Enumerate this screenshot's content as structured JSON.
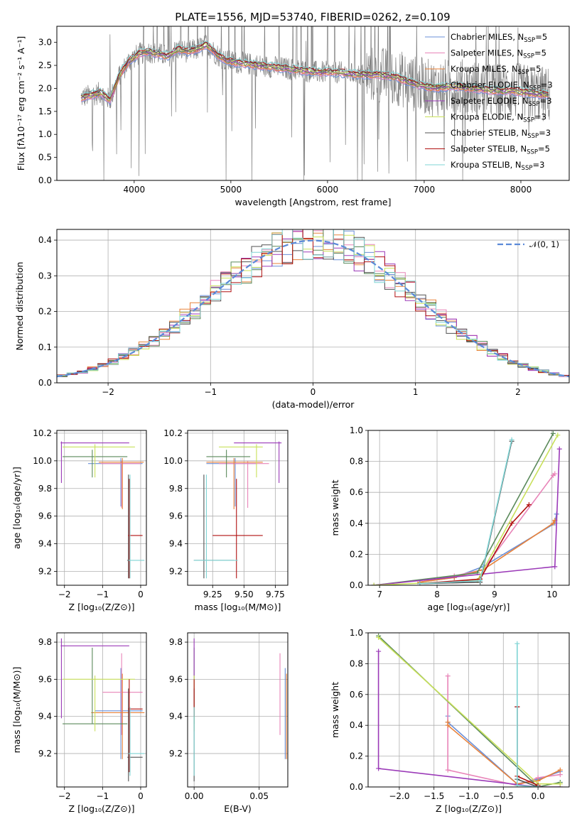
{
  "title": "PLATE=1556, MJD=53740, FIBERID=0262, z=0.109",
  "colors": {
    "Chabrier MILES": "#6a8fd8",
    "Salpeter MILES": "#e884b8",
    "Kroupa MILES": "#e8823a",
    "Chabrier ELODIE": "#5b8a5b",
    "Salpeter ELODIE": "#9b3ab8",
    "Kroupa ELODIE": "#c8e05a",
    "Chabrier STELIB": "#505050",
    "Salpeter STELIB": "#b01010",
    "Kroupa STELIB": "#7fd4d4",
    "data": "#808080",
    "gaussian": "#5b8ad8"
  },
  "chart_data": [
    {
      "type": "line",
      "xlabel": "wavelength [Angstrom, rest frame]",
      "ylabel": "Flux [fλ10⁻¹⁷ erg cm⁻² s⁻¹ A⁻¹]",
      "xlim": [
        3200,
        8500
      ],
      "ylim": [
        0,
        3.35
      ],
      "xticks": [
        "4000",
        "5000",
        "6000",
        "7000",
        "8000"
      ],
      "yticks": [
        "0.0",
        "0.5",
        "1.0",
        "1.5",
        "2.0",
        "2.5",
        "3.0"
      ],
      "legend_position": "top-right",
      "legend": [
        {
          "name": "Chabrier MILES",
          "suffix": "=5"
        },
        {
          "name": "Salpeter MILES",
          "suffix": "=5"
        },
        {
          "name": "Kroupa MILES",
          "suffix": "=5"
        },
        {
          "name": "Chabrier ELODIE",
          "suffix": "=3"
        },
        {
          "name": "Salpeter ELODIE",
          "suffix": "=3"
        },
        {
          "name": "Kroupa ELODIE",
          "suffix": "=3"
        },
        {
          "name": "Chabrier STELIB",
          "suffix": "=3"
        },
        {
          "name": "Salpeter STELIB",
          "suffix": "=5"
        },
        {
          "name": "Kroupa STELIB",
          "suffix": "=3"
        }
      ],
      "legend_label_infix": ", N",
      "legend_label_sub": "SSP",
      "continuum": {
        "x": [
          3450,
          3550,
          3650,
          3750,
          3850,
          3950,
          4050,
          4150,
          4250,
          4350,
          4450,
          4550,
          4650,
          4750,
          4850,
          4950,
          5100,
          5300,
          5500,
          5700,
          5900,
          6100,
          6300,
          6500,
          6700,
          6900,
          7100,
          7300,
          7500,
          7700,
          7900,
          8100,
          8300
        ],
        "y": [
          1.8,
          1.85,
          1.9,
          1.75,
          2.3,
          2.6,
          2.75,
          2.8,
          2.75,
          2.7,
          2.85,
          2.8,
          2.85,
          2.95,
          2.75,
          2.6,
          2.55,
          2.5,
          2.45,
          2.4,
          2.35,
          2.35,
          2.3,
          2.3,
          2.25,
          2.1,
          2.0,
          2.05,
          2.0,
          1.95,
          1.95,
          1.9,
          1.85
        ]
      }
    },
    {
      "type": "line",
      "xlabel": "(data-model)/error",
      "ylabel": "Normed distribution",
      "xlim": [
        -2.5,
        2.5
      ],
      "ylim": [
        0,
        0.43
      ],
      "xticks": [
        "−2",
        "−1",
        "0",
        "1",
        "2"
      ],
      "yticks": [
        "0.0",
        "0.1",
        "0.2",
        "0.3",
        "0.4"
      ],
      "legend_position": "top-right",
      "gaussian_label": "𝒩(0, 1)",
      "bin_width": 0.1
    },
    {
      "type": "scatter",
      "xlabel": "Z [log₁₀(Z/Z⊙)]",
      "ylabel": "age  [log₁₀(age/yr)]",
      "xlim": [
        -2.2,
        0.15
      ],
      "ylim": [
        9.1,
        10.22
      ],
      "xticks": [
        "−2",
        "−1",
        "0"
      ],
      "yticks": [
        "9.2",
        "9.4",
        "9.6",
        "9.8",
        "10.0",
        "10.2"
      ],
      "points": [
        {
          "series": "Chabrier MILES",
          "x": -0.52,
          "y": 9.98,
          "xlo": -1.38,
          "xhi": 0.05,
          "ylo": 9.67,
          "yhi": 10.02
        },
        {
          "series": "Salpeter MILES",
          "x": -0.5,
          "y": 9.98,
          "xlo": -1.05,
          "xhi": 0.0,
          "ylo": 9.66,
          "yhi": 10.0
        },
        {
          "series": "Kroupa MILES",
          "x": -0.48,
          "y": 9.99,
          "xlo": -1.1,
          "xhi": 0.08,
          "ylo": 9.65,
          "yhi": 10.02
        },
        {
          "series": "Chabrier ELODIE",
          "x": -1.27,
          "y": 10.03,
          "xlo": -2.05,
          "xhi": -0.35,
          "ylo": 9.88,
          "yhi": 10.08
        },
        {
          "series": "Salpeter ELODIE",
          "x": -2.08,
          "y": 10.13,
          "xlo": -2.1,
          "xhi": -0.3,
          "ylo": 9.84,
          "yhi": 10.14
        },
        {
          "series": "Kroupa ELODIE",
          "x": -1.2,
          "y": 10.1,
          "xlo": -2.05,
          "xhi": -0.15,
          "ylo": 9.88,
          "yhi": 10.12
        },
        {
          "series": "Chabrier STELIB",
          "x": -0.32,
          "y": 9.28,
          "xlo": -0.35,
          "xhi": -0.28,
          "ylo": 9.15,
          "yhi": 9.9
        },
        {
          "series": "Salpeter STELIB",
          "x": -0.3,
          "y": 9.46,
          "xlo": -0.33,
          "xhi": 0.05,
          "ylo": 9.15,
          "yhi": 9.87
        },
        {
          "series": "Kroupa STELIB",
          "x": -0.28,
          "y": 9.28,
          "xlo": -0.32,
          "xhi": 0.1,
          "ylo": 9.15,
          "yhi": 9.9
        }
      ]
    },
    {
      "type": "scatter",
      "xlabel": "mass [log₁₀(M/M⊙)]",
      "ylabel": "",
      "xlim": [
        9.05,
        9.85
      ],
      "ylim": [
        9.1,
        10.22
      ],
      "xticks": [
        "9.25",
        "9.50",
        "9.75"
      ],
      "yticks": [
        "9.2",
        "9.4",
        "9.6",
        "9.8",
        "10.0",
        "10.2"
      ],
      "points": [
        {
          "series": "Chabrier MILES",
          "x": 9.43,
          "y": 9.98,
          "xlo": 9.2,
          "xhi": 9.6,
          "ylo": 9.67,
          "yhi": 10.02
        },
        {
          "series": "Salpeter MILES",
          "x": 9.53,
          "y": 9.98,
          "xlo": 9.3,
          "xhi": 9.7,
          "ylo": 9.66,
          "yhi": 10.0
        },
        {
          "series": "Kroupa MILES",
          "x": 9.42,
          "y": 9.99,
          "xlo": 9.2,
          "xhi": 9.65,
          "ylo": 9.65,
          "yhi": 10.02
        },
        {
          "series": "Chabrier ELODIE",
          "x": 9.36,
          "y": 10.03,
          "xlo": 9.2,
          "xhi": 9.55,
          "ylo": 9.88,
          "yhi": 10.08
        },
        {
          "series": "Salpeter ELODIE",
          "x": 9.78,
          "y": 10.13,
          "xlo": 9.42,
          "xhi": 9.8,
          "ylo": 9.84,
          "yhi": 10.14
        },
        {
          "series": "Kroupa ELODIE",
          "x": 9.6,
          "y": 10.1,
          "xlo": 9.3,
          "xhi": 9.65,
          "ylo": 9.88,
          "yhi": 10.12
        },
        {
          "series": "Chabrier STELIB",
          "x": 9.18,
          "y": 9.28,
          "xlo": 9.1,
          "xhi": 9.42,
          "ylo": 9.15,
          "yhi": 9.9
        },
        {
          "series": "Salpeter STELIB",
          "x": 9.44,
          "y": 9.46,
          "xlo": 9.25,
          "xhi": 9.65,
          "ylo": 9.15,
          "yhi": 9.87
        },
        {
          "series": "Kroupa STELIB",
          "x": 9.2,
          "y": 9.28,
          "xlo": 9.1,
          "xhi": 9.45,
          "ylo": 9.15,
          "yhi": 9.9
        }
      ]
    },
    {
      "type": "line",
      "xlabel": "age  [log₁₀(age/yr)]",
      "ylabel": "mass weight",
      "xlim": [
        6.8,
        10.3
      ],
      "ylim": [
        0,
        1.0
      ],
      "xticks": [
        "7",
        "8",
        "9",
        "10"
      ],
      "yticks": [
        "0.0",
        "0.2",
        "0.4",
        "0.6",
        "0.8",
        "1.0"
      ],
      "series": [
        {
          "name": "Chabrier MILES",
          "x": [
            7.7,
            8.3,
            8.8,
            10.05,
            10.08
          ],
          "y": [
            0.02,
            0.05,
            0.12,
            0.4,
            0.46
          ]
        },
        {
          "name": "Salpeter MILES",
          "x": [
            7.7,
            8.3,
            8.8,
            10.02,
            10.05
          ],
          "y": [
            0.02,
            0.06,
            0.1,
            0.71,
            0.72
          ]
        },
        {
          "name": "Kroupa MILES",
          "x": [
            7.7,
            8.3,
            8.8,
            10.02,
            10.05
          ],
          "y": [
            0.02,
            0.05,
            0.1,
            0.4,
            0.42
          ]
        },
        {
          "name": "Chabrier ELODIE",
          "x": [
            6.9,
            8.7,
            10.02
          ],
          "y": [
            0.0,
            0.08,
            0.98
          ]
        },
        {
          "name": "Salpeter ELODIE",
          "x": [
            6.9,
            10.05,
            10.13
          ],
          "y": [
            0.0,
            0.12,
            0.88
          ]
        },
        {
          "name": "Kroupa ELODIE",
          "x": [
            6.9,
            8.7,
            10.1
          ],
          "y": [
            0.0,
            0.03,
            0.97
          ]
        },
        {
          "name": "Chabrier STELIB",
          "x": [
            7.7,
            8.75,
            9.3
          ],
          "y": [
            0.01,
            0.02,
            0.93
          ]
        },
        {
          "name": "Salpeter STELIB",
          "x": [
            7.7,
            8.75,
            9.3,
            9.6
          ],
          "y": [
            0.01,
            0.04,
            0.4,
            0.52
          ]
        },
        {
          "name": "Kroupa STELIB",
          "x": [
            7.7,
            8.75,
            9.3
          ],
          "y": [
            0.01,
            0.03,
            0.94
          ]
        }
      ]
    },
    {
      "type": "scatter",
      "xlabel": "Z [log₁₀(Z/Z⊙)]",
      "ylabel": "mass [log₁₀(M/M⊙)]",
      "xlim": [
        -2.2,
        0.15
      ],
      "ylim": [
        9.02,
        9.85
      ],
      "xticks": [
        "−2",
        "−1",
        "0"
      ],
      "yticks": [
        "9.2",
        "9.4",
        "9.6",
        "9.8"
      ],
      "points": [
        {
          "series": "Chabrier MILES",
          "x": -0.52,
          "y": 9.43,
          "xlo": -1.2,
          "xhi": 0.05,
          "ylo": 9.17,
          "yhi": 9.66
        },
        {
          "series": "Salpeter MILES",
          "x": -0.5,
          "y": 9.53,
          "xlo": -1.0,
          "xhi": 0.05,
          "ylo": 9.3,
          "yhi": 9.74
        },
        {
          "series": "Kroupa MILES",
          "x": -0.48,
          "y": 9.42,
          "xlo": -1.3,
          "xhi": 0.1,
          "ylo": 9.17,
          "yhi": 9.63
        },
        {
          "series": "Chabrier ELODIE",
          "x": -1.27,
          "y": 9.36,
          "xlo": -2.05,
          "xhi": -0.35,
          "ylo": 9.36,
          "yhi": 9.77
        },
        {
          "series": "Salpeter ELODIE",
          "x": -2.08,
          "y": 9.78,
          "xlo": -2.1,
          "xhi": -0.3,
          "ylo": 9.39,
          "yhi": 9.82
        },
        {
          "series": "Kroupa ELODIE",
          "x": -1.2,
          "y": 9.6,
          "xlo": -2.05,
          "xhi": -0.15,
          "ylo": 9.32,
          "yhi": 9.62
        },
        {
          "series": "Chabrier STELIB",
          "x": -0.32,
          "y": 9.18,
          "xlo": -0.35,
          "xhi": 0.05,
          "ylo": 9.05,
          "yhi": 9.55
        },
        {
          "series": "Salpeter STELIB",
          "x": -0.3,
          "y": 9.44,
          "xlo": -0.33,
          "xhi": 0.05,
          "ylo": 9.1,
          "yhi": 9.6
        },
        {
          "series": "Kroupa STELIB",
          "x": -0.28,
          "y": 9.2,
          "xlo": -0.32,
          "xhi": 0.1,
          "ylo": 9.08,
          "yhi": 9.45
        }
      ]
    },
    {
      "type": "scatter",
      "xlabel": "E(B-V)",
      "ylabel": "",
      "xlim": [
        -0.005,
        0.072
      ],
      "ylim": [
        9.02,
        9.85
      ],
      "xticks": [
        "0.00",
        "0.05"
      ],
      "yticks": [
        "9.2",
        "9.4",
        "9.6",
        "9.8"
      ],
      "bars": [
        {
          "series": "Chabrier MILES",
          "x": 0.07,
          "ylo": 9.17,
          "yhi": 9.66
        },
        {
          "series": "Salpeter MILES",
          "x": 0.066,
          "ylo": 9.3,
          "yhi": 9.74
        },
        {
          "series": "Kroupa MILES",
          "x": 0.071,
          "ylo": 9.17,
          "yhi": 9.63
        },
        {
          "series": "Chabrier ELODIE",
          "x": 0.0,
          "ylo": 9.36,
          "yhi": 9.77
        },
        {
          "series": "Salpeter ELODIE",
          "x": 0.0,
          "ylo": 9.6,
          "yhi": 9.82
        },
        {
          "series": "Kroupa ELODIE",
          "x": 0.0,
          "ylo": 9.32,
          "yhi": 9.62
        },
        {
          "series": "Chabrier STELIB",
          "x": 0.0,
          "ylo": 9.05,
          "yhi": 9.55
        },
        {
          "series": "Salpeter STELIB",
          "x": 0.0,
          "ylo": 9.4,
          "yhi": 9.6
        },
        {
          "series": "Kroupa STELIB",
          "x": 0.0,
          "ylo": 9.08,
          "yhi": 9.45
        }
      ]
    },
    {
      "type": "line",
      "xlabel": "Z [log₁₀(Z/Z⊙)]",
      "ylabel": "mass weight",
      "xlim": [
        -2.45,
        0.45
      ],
      "ylim": [
        0,
        1.0
      ],
      "xticks": [
        "−2.0",
        "−1.5",
        "−1.0",
        "−0.5",
        "0.0"
      ],
      "yticks": [
        "0.0",
        "0.2",
        "0.4",
        "0.6",
        "0.8",
        "1.0"
      ],
      "series": [
        {
          "name": "Chabrier MILES",
          "x": [
            -1.3,
            -1.3,
            -0.3,
            0.0,
            0.32
          ],
          "y": [
            0.46,
            0.42,
            0.02,
            0.05,
            0.1
          ]
        },
        {
          "name": "Salpeter MILES",
          "x": [
            -1.3,
            -1.3,
            -0.3,
            0.0,
            0.32
          ],
          "y": [
            0.72,
            0.11,
            0.01,
            0.06,
            0.08
          ]
        },
        {
          "name": "Kroupa MILES",
          "x": [
            -1.3,
            -1.3,
            -0.3,
            0.0,
            0.32
          ],
          "y": [
            0.42,
            0.4,
            0.02,
            0.04,
            0.11
          ]
        },
        {
          "name": "Chabrier ELODIE",
          "x": [
            -2.3,
            0.0,
            0.32
          ],
          "y": [
            0.98,
            0.0,
            0.03
          ]
        },
        {
          "name": "Salpeter ELODIE",
          "x": [
            -2.3,
            -2.3,
            0.0,
            0.32
          ],
          "y": [
            0.88,
            0.12,
            0.0,
            0.0
          ]
        },
        {
          "name": "Kroupa ELODIE",
          "x": [
            -2.3,
            0.0,
            0.32
          ],
          "y": [
            0.97,
            0.02,
            0.02
          ]
        },
        {
          "name": "Chabrier STELIB",
          "x": [
            -0.3,
            -0.3,
            0.0
          ],
          "y": [
            0.52,
            0.05,
            0.0
          ]
        },
        {
          "name": "Salpeter STELIB",
          "x": [
            -0.3,
            -0.3,
            0.0
          ],
          "y": [
            0.52,
            0.07,
            0.01
          ]
        },
        {
          "name": "Kroupa STELIB",
          "x": [
            -0.3,
            -0.3,
            0.0
          ],
          "y": [
            0.93,
            0.01,
            0.0
          ]
        }
      ]
    }
  ]
}
